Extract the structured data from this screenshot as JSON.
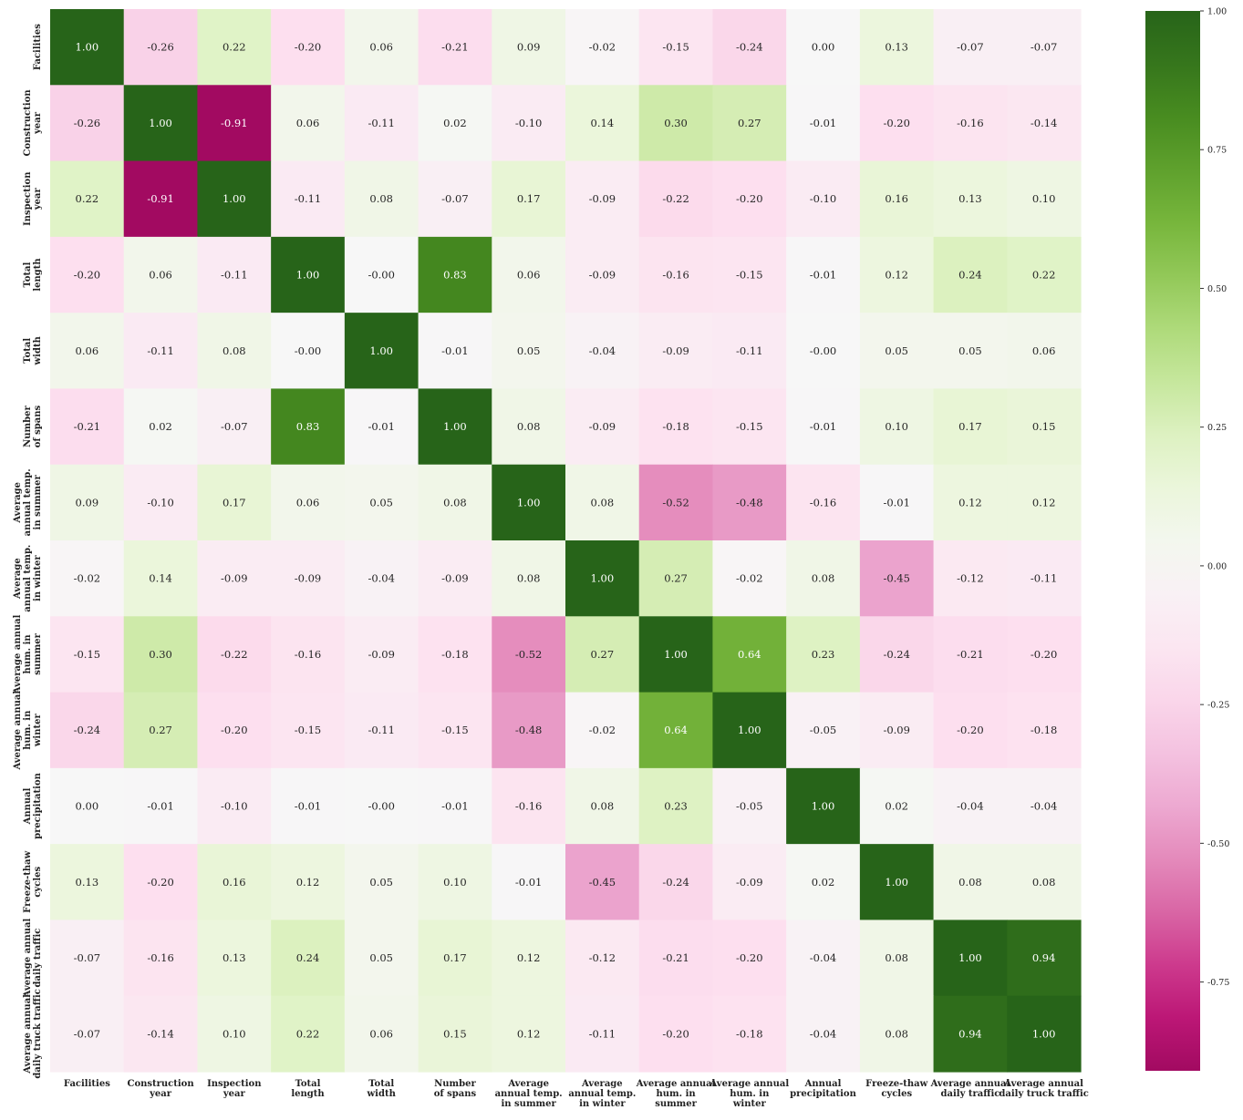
{
  "chart_data": {
    "type": "heatmap",
    "title": "",
    "colormap": "PiYG",
    "vmin": -0.91,
    "vmax": 1.0,
    "x_labels": [
      [
        "Facilities"
      ],
      [
        "Construction",
        "year"
      ],
      [
        "Inspection",
        "year"
      ],
      [
        "Total",
        "length"
      ],
      [
        "Total",
        "width"
      ],
      [
        "Number",
        "of spans"
      ],
      [
        "Average",
        "annual temp.",
        "in summer"
      ],
      [
        "Average",
        "annual temp.",
        "in winter"
      ],
      [
        "Average annual",
        "hum. in",
        "summer"
      ],
      [
        "Average annual",
        "hum. in",
        "winter"
      ],
      [
        "Annual",
        "precipitation"
      ],
      [
        "Freeze-thaw",
        "cycles"
      ],
      [
        "Average annual",
        "daily traffic"
      ],
      [
        "Average annual",
        "daily truck traffic"
      ]
    ],
    "y_labels": [
      [
        "Facilities"
      ],
      [
        "Construction",
        "year"
      ],
      [
        "Inspection",
        "year"
      ],
      [
        "Total",
        "length"
      ],
      [
        "Total",
        "width"
      ],
      [
        "Number",
        "of spans"
      ],
      [
        "Average",
        "annual temp.",
        "in summer"
      ],
      [
        "Average",
        "annual temp.",
        "in winter"
      ],
      [
        "Average annual",
        "hum. in",
        "summer"
      ],
      [
        "Average annual",
        "hum. in",
        "winter"
      ],
      [
        "Annual",
        "precipitation"
      ],
      [
        "Freeze-thaw",
        "cycles"
      ],
      [
        "Average annual",
        "daily traffic"
      ],
      [
        "Average annual",
        "daily truck traffic"
      ]
    ],
    "matrix": [
      [
        1.0,
        -0.26,
        0.22,
        -0.2,
        0.06,
        -0.21,
        0.09,
        -0.02,
        -0.15,
        -0.24,
        0.0,
        0.13,
        -0.07,
        -0.07
      ],
      [
        -0.26,
        1.0,
        -0.91,
        0.06,
        -0.11,
        0.02,
        -0.1,
        0.14,
        0.3,
        0.27,
        -0.01,
        -0.2,
        -0.16,
        -0.14
      ],
      [
        0.22,
        -0.91,
        1.0,
        -0.11,
        0.08,
        -0.07,
        0.17,
        -0.09,
        -0.22,
        -0.2,
        -0.1,
        0.16,
        0.13,
        0.1
      ],
      [
        -0.2,
        0.06,
        -0.11,
        1.0,
        -0.0,
        0.83,
        0.06,
        -0.09,
        -0.16,
        -0.15,
        -0.01,
        0.12,
        0.24,
        0.22
      ],
      [
        0.06,
        -0.11,
        0.08,
        -0.0,
        1.0,
        -0.01,
        0.05,
        -0.04,
        -0.09,
        -0.11,
        -0.0,
        0.05,
        0.05,
        0.06
      ],
      [
        -0.21,
        0.02,
        -0.07,
        0.83,
        -0.01,
        1.0,
        0.08,
        -0.09,
        -0.18,
        -0.15,
        -0.01,
        0.1,
        0.17,
        0.15
      ],
      [
        0.09,
        -0.1,
        0.17,
        0.06,
        0.05,
        0.08,
        1.0,
        0.08,
        -0.52,
        -0.48,
        -0.16,
        -0.01,
        0.12,
        0.12
      ],
      [
        -0.02,
        0.14,
        -0.09,
        -0.09,
        -0.04,
        -0.09,
        0.08,
        1.0,
        0.27,
        -0.02,
        0.08,
        -0.45,
        -0.12,
        -0.11
      ],
      [
        -0.15,
        0.3,
        -0.22,
        -0.16,
        -0.09,
        -0.18,
        -0.52,
        0.27,
        1.0,
        0.64,
        0.23,
        -0.24,
        -0.21,
        -0.2
      ],
      [
        -0.24,
        0.27,
        -0.2,
        -0.15,
        -0.11,
        -0.15,
        -0.48,
        -0.02,
        0.64,
        1.0,
        -0.05,
        -0.09,
        -0.2,
        -0.18
      ],
      [
        0.0,
        -0.01,
        -0.1,
        -0.01,
        -0.0,
        -0.01,
        -0.16,
        0.08,
        0.23,
        -0.05,
        1.0,
        0.02,
        -0.04,
        -0.04
      ],
      [
        0.13,
        -0.2,
        0.16,
        0.12,
        0.05,
        0.1,
        -0.01,
        -0.45,
        -0.24,
        -0.09,
        0.02,
        1.0,
        0.08,
        0.08
      ],
      [
        -0.07,
        -0.16,
        0.13,
        0.24,
        0.05,
        0.17,
        0.12,
        -0.12,
        -0.21,
        -0.2,
        -0.04,
        0.08,
        1.0,
        0.94
      ],
      [
        -0.07,
        -0.14,
        0.1,
        0.22,
        0.06,
        0.15,
        0.12,
        -0.11,
        -0.2,
        -0.18,
        -0.04,
        0.08,
        0.94,
        1.0
      ]
    ],
    "colorbar_ticks": [
      "1.00",
      "0.75",
      "0.50",
      "0.25",
      "0.00",
      "-0.25",
      "-0.50",
      "-0.75"
    ],
    "colorbar_tick_values": [
      1.0,
      0.75,
      0.5,
      0.25,
      0.0,
      -0.25,
      -0.5,
      -0.75
    ],
    "grid": false,
    "legend": "colorbar-right"
  }
}
